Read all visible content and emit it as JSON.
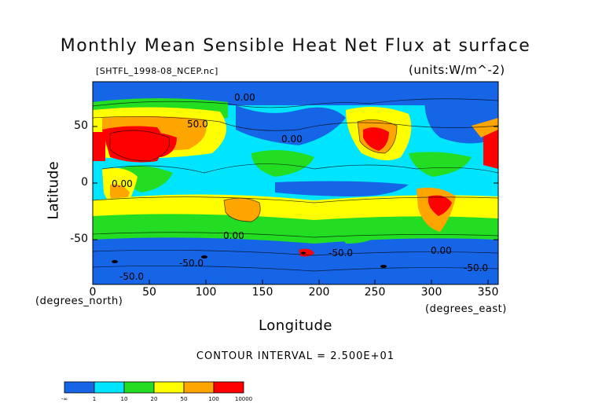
{
  "title": "Monthly Mean Sensible Heat Net Flux at surface",
  "subtitle_left": "[SHTFL_1998-08_NCEP.nc]",
  "subtitle_right": "(units:W/m^-2)",
  "y_axis": {
    "label": "Latitude",
    "ticks": [
      "50",
      "0",
      "-50"
    ]
  },
  "x_axis": {
    "label": "Longitude",
    "unit_left": "(degrees_north)",
    "unit_right": "(degrees_east)",
    "ticks": [
      "0",
      "50",
      "100",
      "150",
      "200",
      "250",
      "300",
      "350"
    ]
  },
  "contour_interval": "CONTOUR INTERVAL = 2.500E+01",
  "contour_labels": [
    "-50.0",
    "-50.0",
    "0.00",
    "0.00",
    "0.00",
    "0.00",
    "50.0",
    "-50.0",
    "0.00",
    "-50.0"
  ],
  "colorbar": {
    "labels": [
      "-∞",
      "1",
      "10",
      "20",
      "50",
      "100",
      "10000"
    ],
    "colors": [
      "#1565e6",
      "#00e5ff",
      "#22dd22",
      "#ffff00",
      "#ffa500",
      "#ff0000"
    ]
  },
  "colors": {
    "negative": "#1565e6",
    "near_zero": "#00e5ff",
    "low": "#22dd22",
    "mid": "#ffff00",
    "high": "#ffa500",
    "very_high": "#ff0000"
  }
}
